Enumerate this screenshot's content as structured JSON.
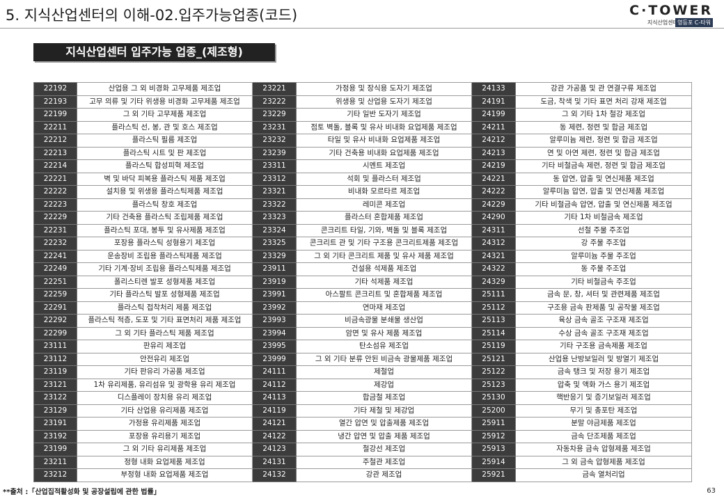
{
  "header": {
    "title": "5. 지식산업센터의 이해-02.입주가능업종(코드)",
    "logo": "C·TOWER",
    "logo_sub": "지식산업센터",
    "logo_badge": "영등포 C-타워"
  },
  "subtitle": "지식산업센터 입주가능 업종_(제조형)",
  "table": {
    "rows": [
      [
        "22192",
        "산업용 그 외 비경화 고무제품 제조업",
        "23221",
        "가정용 및 장식용 도자기 제조업",
        "24133",
        "강관 가공품 및 관 연결구류 제조업"
      ],
      [
        "22193",
        "고무 의류 및 기타 위생용 비경화 고무제품 제조업",
        "23222",
        "위생용 및 산업용 도자기 제조업",
        "24191",
        "도금, 착색 및 기타 표면 처리 강재 제조업"
      ],
      [
        "22199",
        "그 외 기타 고무제품 제조업",
        "23229",
        "기타 일반 도자기 제조업",
        "24199",
        "그 외 기타 1차 철강 제조업"
      ],
      [
        "22211",
        "플라스틱 선, 봉, 관 및 호스 제조업",
        "23231",
        "점토 벽돌, 블록 및 유사 비내화 요업제품 제조업",
        "24211",
        "동 제련, 정련 및 합금 제조업"
      ],
      [
        "22212",
        "플라스틱 필름 제조업",
        "23232",
        "타일 및 유사 비내화 요업제품 제조업",
        "24212",
        "알루미늄 제련, 정련 및 합금 제조업"
      ],
      [
        "22213",
        "플라스틱 시트 및 판 제조업",
        "23239",
        "기타 건축용 비내화 요업제품 제조업",
        "24213",
        "연 및 아연 제련, 정련 및 합금 제조업"
      ],
      [
        "22214",
        "플라스틱 합성피혁 제조업",
        "23311",
        "시멘트 제조업",
        "24219",
        "기타 비철금속 제련, 정련 및 합금 제조업"
      ],
      [
        "22221",
        "벽 및 바닥 피복용 플라스틱 제품 제조업",
        "23312",
        "석회 및 플라스터 제조업",
        "24221",
        "동 압연, 압출 및 연신제품 제조업"
      ],
      [
        "22222",
        "설치용 및 위생용 플라스틱제품 제조업",
        "23321",
        "비내화 모르타르 제조업",
        "24222",
        "알루미늄 압연, 압출 및 연신제품 제조업"
      ],
      [
        "22223",
        "플라스틱 창호 제조업",
        "23322",
        "레미콘 제조업",
        "24229",
        "기타 비철금속 압연, 압출 및 연신제품 제조업"
      ],
      [
        "22229",
        "기타 건축용 플라스틱 조립제품 제조업",
        "23323",
        "플라스터 혼합제품 제조업",
        "24290",
        "기타 1차 비철금속 제조업"
      ],
      [
        "22231",
        "플라스틱 포대, 봉투 및 유사제품 제조업",
        "23324",
        "콘크리트 타일, 기와, 벽돌 및 블록 제조업",
        "24311",
        "선철 주물 주조업"
      ],
      [
        "22232",
        "포장용 플라스틱 성형용기 제조업",
        "23325",
        "콘크리트 관 및 기타 구조용 콘크리트제품 제조업",
        "24312",
        "강 주물 주조업"
      ],
      [
        "22241",
        "운송장비 조립용 플라스틱제품 제조업",
        "23329",
        "그 외 기타 콘크리트 제품 및 유사 제품 제조업",
        "24321",
        "알루미늄 주물 주조업"
      ],
      [
        "22249",
        "기타 기계·장비 조립용 플라스틱제품 제조업",
        "23911",
        "건설용 석제품 제조업",
        "24322",
        "동 주물 주조업"
      ],
      [
        "22251",
        "폴리스티렌 발포 성형제품 제조업",
        "23919",
        "기타 석제품 제조업",
        "24329",
        "기타 비철금속 주조업"
      ],
      [
        "22259",
        "기타 플라스틱 발포 성형제품 제조업",
        "23991",
        "아스팔트 콘크리트 및 혼합제품 제조업",
        "25111",
        "금속 문, 창, 셔터 및 관련제품 제조업"
      ],
      [
        "22291",
        "플라스틱 접착처리 제품 제조업",
        "23992",
        "연마재 제조업",
        "25112",
        "구조용 금속 판제품 및 공작물 제조업"
      ],
      [
        "22292",
        "플라스틱 적층, 도포 및 기타 표면처리 제품 제조업",
        "23993",
        "비금속광물 분쇄물 생산업",
        "25113",
        "육상 금속 골조 구조재 제조업"
      ],
      [
        "22299",
        "그 외 기타 플라스틱 제품 제조업",
        "23994",
        "암면 및 유사 제품 제조업",
        "25114",
        "수상 금속 골조 구조재 제조업"
      ],
      [
        "23111",
        "판유리 제조업",
        "23995",
        "탄소섬유 제조업",
        "25119",
        "기타 구조용 금속제품 제조업"
      ],
      [
        "23112",
        "안전유리 제조업",
        "23999",
        "그 외 기타 분류 안된 비금속 광물제품 제조업",
        "25121",
        "산업용 난방보일러 및 방열기 제조업"
      ],
      [
        "23119",
        "기타 판유리 가공품 제조업",
        "24111",
        "제철업",
        "25122",
        "금속 탱크 및 저장 용기 제조업"
      ],
      [
        "23121",
        "1차 유리제품, 유리섬유 및 광학용 유리 제조업",
        "24112",
        "제강업",
        "25123",
        "압축 및 액화 가스 용기 제조업"
      ],
      [
        "23122",
        "디스플레이 장치용 유리 제조업",
        "24113",
        "합금철 제조업",
        "25130",
        "핵반응기 및 증기보일러 제조업"
      ],
      [
        "23129",
        "기타 산업용 유리제품 제조업",
        "24119",
        "기타 제철 및 제강업",
        "25200",
        "무기 및 총포탄 제조업"
      ],
      [
        "23191",
        "가정용 유리제품 제조업",
        "24121",
        "열간 압연 및 압출제품 제조업",
        "25911",
        "분말 야금제품 제조업"
      ],
      [
        "23192",
        "포장용 유리용기 제조업",
        "24122",
        "냉간 압연 및 압출 제품 제조업",
        "25912",
        "금속 단조제품 제조업"
      ],
      [
        "23199",
        "그 외 기타 유리제품 제조업",
        "24123",
        "철강선 제조업",
        "25913",
        "자동차용 금속 압형제품 제조업"
      ],
      [
        "23211",
        "정형 내화 요업제품 제조업",
        "24131",
        "주철관 제조업",
        "25914",
        "그 외 금속 압형제품 제조업"
      ],
      [
        "23212",
        "부정형 내화 요업제품 제조업",
        "24132",
        "강관 제조업",
        "25921",
        "금속 열처리업"
      ]
    ]
  },
  "footer": {
    "source": "**출처 :「산업집적활성화 및 공장설립에 관한 법률」",
    "page": "63"
  }
}
